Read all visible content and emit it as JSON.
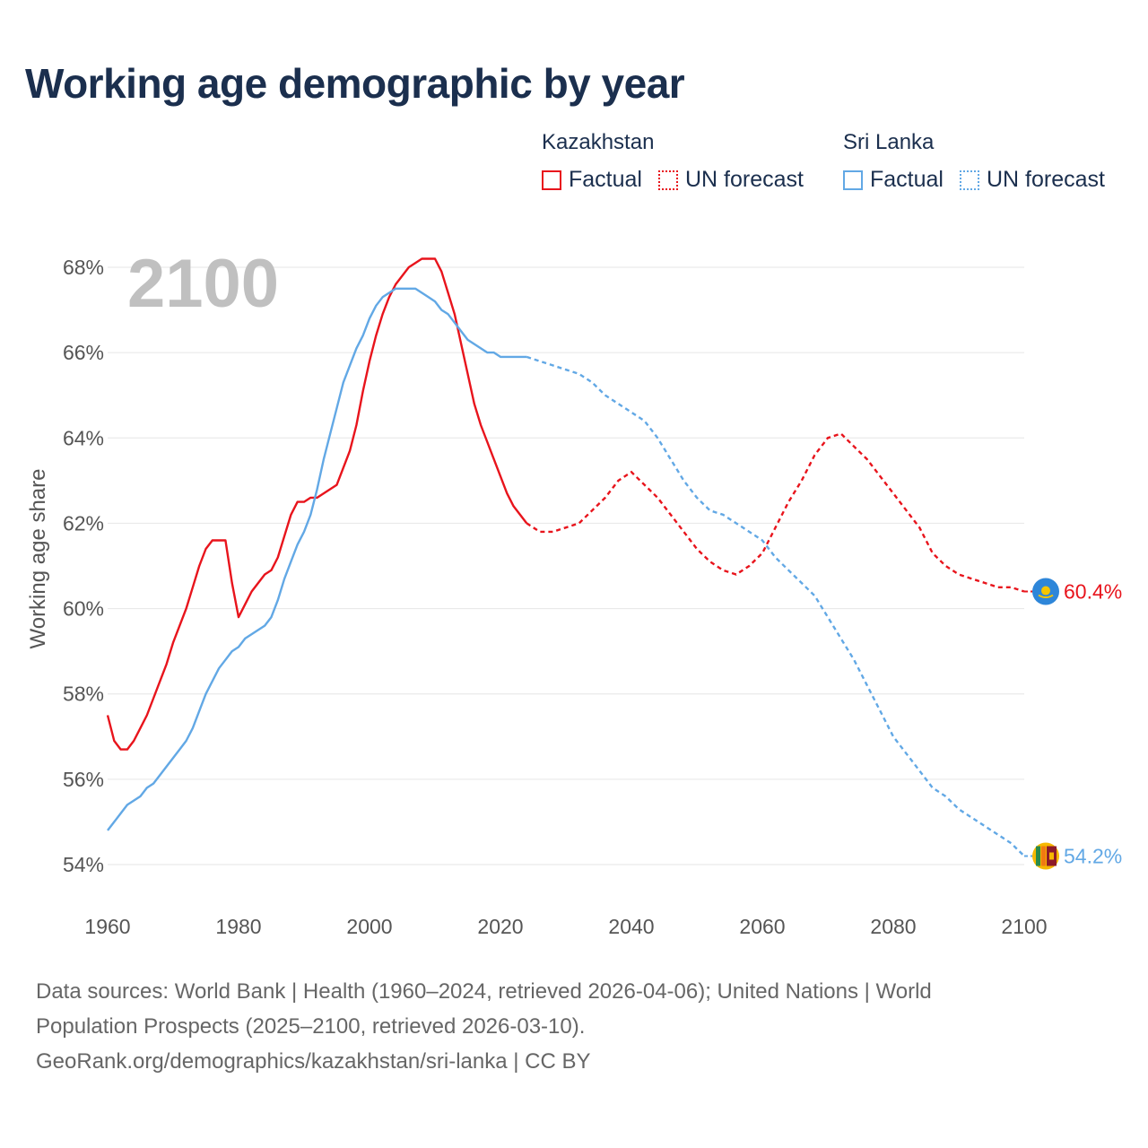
{
  "title": "Working age demographic by year",
  "colors": {
    "kazakhstan": "#e8141c",
    "sri_lanka": "#62a8e5",
    "text": "#1b2f4e",
    "axis_text": "#555555",
    "grid": "#e6e6e6",
    "year_watermark": "#c0c0c0"
  },
  "legend": [
    {
      "country": "Kazakhstan",
      "factual_label": "Factual",
      "forecast_label": "UN forecast",
      "color": "#e8141c"
    },
    {
      "country": "Sri Lanka",
      "factual_label": "Factual",
      "forecast_label": "UN forecast",
      "color": "#62a8e5"
    }
  ],
  "sources": {
    "line1": "Data sources: World Bank | Health (1960–2024, retrieved 2026-04-06); United Nations | World",
    "line2": "Population Prospects (2025–2100, retrieved 2026-03-10).",
    "line3": "GeoRank.org/demographics/kazakhstan/sri-lanka | CC BY"
  },
  "chart_data": {
    "type": "line",
    "title": "Working age demographic by year",
    "current_year_label": "2100",
    "xlabel": "",
    "ylabel": "Working age share",
    "xlim": [
      1960,
      2100
    ],
    "ylim": [
      53,
      69
    ],
    "x_ticks": [
      1960,
      1980,
      2000,
      2020,
      2040,
      2060,
      2080,
      2100
    ],
    "x_tick_labels": [
      "1960",
      "1980",
      "2000",
      "2020",
      "2040",
      "2060",
      "2080",
      "2100"
    ],
    "y_ticks": [
      54,
      56,
      58,
      60,
      62,
      64,
      66,
      68
    ],
    "y_tick_labels": [
      "54%",
      "56%",
      "58%",
      "60%",
      "62%",
      "64%",
      "66%",
      "68%"
    ],
    "factual_end_year": 2024,
    "series": [
      {
        "name": "Kazakhstan",
        "color": "#e8141c",
        "flag": "kazakhstan-flag-icon",
        "end_label": "60.4%",
        "x": [
          1960,
          1961,
          1962,
          1963,
          1964,
          1965,
          1966,
          1967,
          1968,
          1969,
          1970,
          1971,
          1972,
          1973,
          1974,
          1975,
          1976,
          1977,
          1978,
          1979,
          1980,
          1981,
          1982,
          1983,
          1984,
          1985,
          1986,
          1987,
          1988,
          1989,
          1990,
          1991,
          1992,
          1993,
          1994,
          1995,
          1996,
          1997,
          1998,
          1999,
          2000,
          2001,
          2002,
          2003,
          2004,
          2005,
          2006,
          2007,
          2008,
          2009,
          2010,
          2011,
          2012,
          2013,
          2014,
          2015,
          2016,
          2017,
          2018,
          2019,
          2020,
          2021,
          2022,
          2023,
          2024,
          2026,
          2028,
          2030,
          2032,
          2034,
          2036,
          2038,
          2040,
          2042,
          2044,
          2046,
          2048,
          2050,
          2052,
          2054,
          2056,
          2058,
          2060,
          2062,
          2064,
          2066,
          2068,
          2070,
          2072,
          2074,
          2076,
          2078,
          2080,
          2082,
          2084,
          2086,
          2088,
          2090,
          2092,
          2094,
          2096,
          2098,
          2100
        ],
        "values": [
          57.5,
          56.9,
          56.7,
          56.7,
          56.9,
          57.2,
          57.5,
          57.9,
          58.3,
          58.7,
          59.2,
          59.6,
          60.0,
          60.5,
          61.0,
          61.4,
          61.6,
          61.6,
          61.6,
          60.6,
          59.8,
          60.1,
          60.4,
          60.6,
          60.8,
          60.9,
          61.2,
          61.7,
          62.2,
          62.5,
          62.5,
          62.6,
          62.6,
          62.7,
          62.8,
          62.9,
          63.3,
          63.7,
          64.3,
          65.1,
          65.8,
          66.4,
          66.9,
          67.3,
          67.6,
          67.8,
          68.0,
          68.1,
          68.2,
          68.2,
          68.2,
          67.9,
          67.4,
          66.9,
          66.2,
          65.5,
          64.8,
          64.3,
          63.9,
          63.5,
          63.1,
          62.7,
          62.4,
          62.2,
          62.0,
          61.8,
          61.8,
          61.9,
          62.0,
          62.3,
          62.6,
          63.0,
          63.2,
          62.9,
          62.6,
          62.2,
          61.8,
          61.4,
          61.1,
          60.9,
          60.8,
          61.0,
          61.3,
          61.9,
          62.5,
          63.0,
          63.6,
          64.0,
          64.1,
          63.8,
          63.5,
          63.1,
          62.7,
          62.3,
          61.9,
          61.3,
          61.0,
          60.8,
          60.7,
          60.6,
          60.5,
          60.5,
          60.4
        ]
      },
      {
        "name": "Sri Lanka",
        "color": "#62a8e5",
        "flag": "sri-lanka-flag-icon",
        "end_label": "54.2%",
        "x": [
          1960,
          1961,
          1962,
          1963,
          1964,
          1965,
          1966,
          1967,
          1968,
          1969,
          1970,
          1971,
          1972,
          1973,
          1974,
          1975,
          1976,
          1977,
          1978,
          1979,
          1980,
          1981,
          1982,
          1983,
          1984,
          1985,
          1986,
          1987,
          1988,
          1989,
          1990,
          1991,
          1992,
          1993,
          1994,
          1995,
          1996,
          1997,
          1998,
          1999,
          2000,
          2001,
          2002,
          2003,
          2004,
          2005,
          2006,
          2007,
          2008,
          2009,
          2010,
          2011,
          2012,
          2013,
          2014,
          2015,
          2016,
          2017,
          2018,
          2019,
          2020,
          2021,
          2022,
          2023,
          2024,
          2026,
          2028,
          2030,
          2032,
          2034,
          2036,
          2038,
          2040,
          2042,
          2044,
          2046,
          2048,
          2050,
          2052,
          2054,
          2056,
          2058,
          2060,
          2062,
          2064,
          2066,
          2068,
          2070,
          2072,
          2074,
          2076,
          2078,
          2080,
          2082,
          2084,
          2086,
          2088,
          2090,
          2092,
          2094,
          2096,
          2098,
          2100
        ],
        "values": [
          54.8,
          55.0,
          55.2,
          55.4,
          55.5,
          55.6,
          55.8,
          55.9,
          56.1,
          56.3,
          56.5,
          56.7,
          56.9,
          57.2,
          57.6,
          58.0,
          58.3,
          58.6,
          58.8,
          59.0,
          59.1,
          59.3,
          59.4,
          59.5,
          59.6,
          59.8,
          60.2,
          60.7,
          61.1,
          61.5,
          61.8,
          62.2,
          62.8,
          63.5,
          64.1,
          64.7,
          65.3,
          65.7,
          66.1,
          66.4,
          66.8,
          67.1,
          67.3,
          67.4,
          67.5,
          67.5,
          67.5,
          67.5,
          67.4,
          67.3,
          67.2,
          67.0,
          66.9,
          66.7,
          66.5,
          66.3,
          66.2,
          66.1,
          66.0,
          66.0,
          65.9,
          65.9,
          65.9,
          65.9,
          65.9,
          65.8,
          65.7,
          65.6,
          65.5,
          65.3,
          65.0,
          64.8,
          64.6,
          64.4,
          64.0,
          63.5,
          63.0,
          62.6,
          62.3,
          62.2,
          62.0,
          61.8,
          61.6,
          61.2,
          60.9,
          60.6,
          60.3,
          59.8,
          59.3,
          58.8,
          58.2,
          57.6,
          57.0,
          56.6,
          56.2,
          55.8,
          55.6,
          55.3,
          55.1,
          54.9,
          54.7,
          54.5,
          54.2
        ]
      }
    ]
  }
}
